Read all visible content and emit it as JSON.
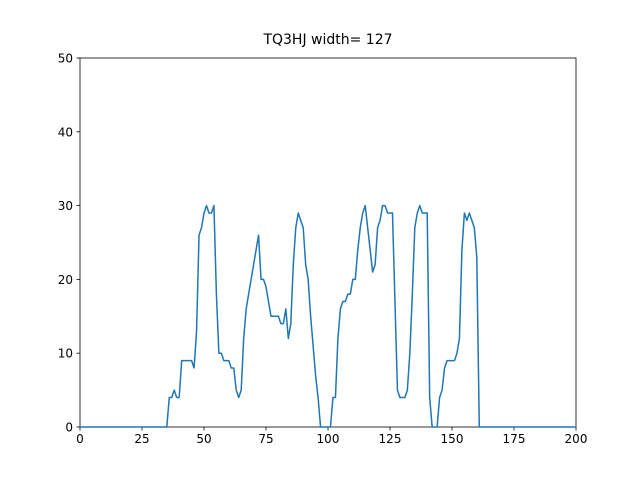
{
  "chart_data": {
    "type": "line",
    "title": "TQ3HJ width= 127",
    "x": [
      0,
      35,
      36,
      37,
      38,
      39,
      40,
      41,
      42,
      43,
      44,
      45,
      46,
      47,
      48,
      49,
      50,
      51,
      52,
      53,
      54,
      55,
      56,
      57,
      58,
      59,
      60,
      61,
      62,
      63,
      64,
      65,
      66,
      67,
      68,
      69,
      70,
      71,
      72,
      73,
      74,
      75,
      76,
      77,
      78,
      79,
      80,
      81,
      82,
      83,
      84,
      85,
      86,
      87,
      88,
      89,
      90,
      91,
      92,
      93,
      94,
      95,
      96,
      97,
      101,
      102,
      103,
      104,
      105,
      106,
      107,
      108,
      109,
      110,
      111,
      112,
      113,
      114,
      115,
      116,
      117,
      118,
      119,
      120,
      121,
      122,
      123,
      124,
      125,
      126,
      127,
      128,
      129,
      130,
      131,
      132,
      133,
      134,
      135,
      136,
      137,
      138,
      139,
      140,
      141,
      142,
      144,
      145,
      146,
      147,
      148,
      149,
      150,
      151,
      152,
      153,
      154,
      155,
      156,
      157,
      158,
      159,
      160,
      161,
      200
    ],
    "values": [
      0,
      0,
      4,
      4,
      5,
      4,
      4,
      9,
      9,
      9,
      9,
      9,
      8,
      13,
      26,
      27,
      29,
      30,
      29,
      29,
      30,
      18,
      10,
      10,
      9,
      9,
      9,
      8,
      8,
      5,
      4,
      5,
      12,
      16,
      18,
      20,
      22,
      24,
      26,
      20,
      20,
      19,
      17,
      15,
      15,
      15,
      15,
      14,
      14,
      16,
      12,
      14,
      22,
      27,
      29,
      28,
      27,
      22,
      20,
      15,
      11,
      7,
      4,
      0,
      0,
      4,
      4,
      12,
      16,
      17,
      17,
      18,
      18,
      20,
      20,
      24,
      27,
      29,
      30,
      27,
      24,
      21,
      22,
      27,
      28,
      30,
      30,
      29,
      29,
      29,
      17,
      5,
      4,
      4,
      4,
      5,
      10,
      18,
      27,
      29,
      30,
      29,
      29,
      29,
      4,
      0,
      0,
      4,
      5,
      8,
      9,
      9,
      9,
      9,
      10,
      12,
      24,
      29,
      28,
      29,
      28,
      27,
      23,
      0,
      0
    ],
    "color": "#1f77b4",
    "xlim": [
      0,
      200
    ],
    "xticks": [
      0,
      25,
      50,
      75,
      100,
      125,
      150,
      175,
      200
    ],
    "ylim": [
      0,
      50
    ],
    "yticks": [
      0,
      10,
      20,
      30,
      40,
      50
    ]
  }
}
